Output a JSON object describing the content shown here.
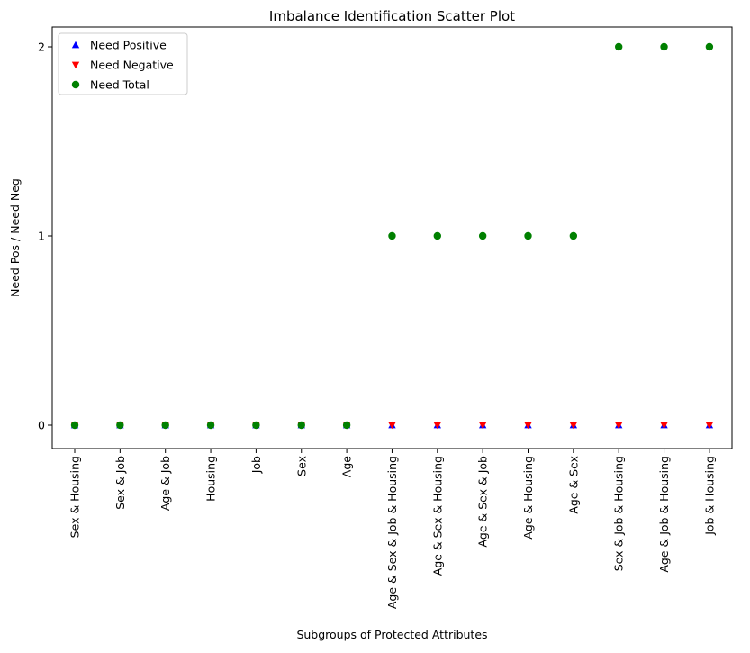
{
  "chart_data": {
    "type": "scatter",
    "title": "Imbalance Identification Scatter Plot",
    "xlabel": "Subgroups of Protected Attributes",
    "ylabel": "Need Pos / Need Neg",
    "categories": [
      "Sex & Housing",
      "Sex & Job",
      "Age & Job",
      "Housing",
      "Job",
      "Sex",
      "Age",
      "Age & Sex & Job & Housing",
      "Age & Sex & Housing",
      "Age & Sex & Job",
      "Age & Housing",
      "Age & Sex",
      "Sex & Job & Housing",
      "Age & Job & Housing",
      "Job & Housing"
    ],
    "yticks": [
      0,
      1,
      2
    ],
    "ylim": [
      -0.15,
      2.1
    ],
    "grid": false,
    "legend_position": "top-left",
    "series": [
      {
        "name": "Need Positive",
        "marker": "triangle-up",
        "color": "#0000ff",
        "values": [
          0,
          0,
          0,
          0,
          0,
          0,
          0,
          0,
          0,
          0,
          0,
          0,
          0,
          0,
          0
        ]
      },
      {
        "name": "Need Negative",
        "marker": "triangle-down",
        "color": "#ff0000",
        "values": [
          0,
          0,
          0,
          0,
          0,
          0,
          0,
          0,
          0,
          0,
          0,
          0,
          0,
          0,
          0
        ]
      },
      {
        "name": "Need Total",
        "marker": "circle",
        "color": "#008000",
        "values": [
          0,
          0,
          0,
          0,
          0,
          0,
          0,
          1,
          1,
          1,
          1,
          1,
          2,
          2,
          2
        ]
      }
    ]
  }
}
